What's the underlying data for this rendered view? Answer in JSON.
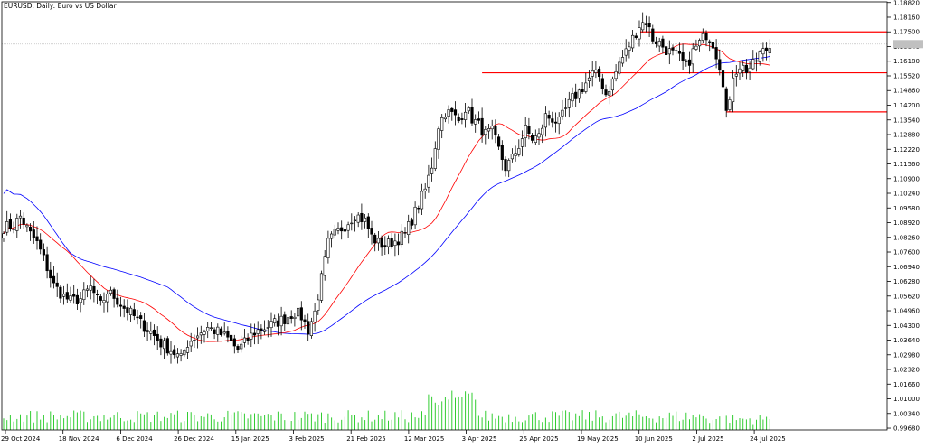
{
  "header": {
    "symbol_label": "EURUSD, Daily:  Euro vs US Dollar"
  },
  "colors": {
    "up_candle": "#ffffff",
    "down_candle": "#000000",
    "candle_outline": "#000000",
    "ma_fast": "#ff0000",
    "ma_slow": "#0000ff",
    "volume": "#32cd32",
    "level_lines": "#ff0000",
    "current_price_line": "#c0c0c0",
    "axis": "#000000",
    "text": "#000000"
  },
  "chart_data": {
    "type": "candlestick",
    "title": "EURUSD, Daily:  Euro vs US Dollar",
    "ylim": [
      0.996,
      1.1885
    ],
    "y_ticks": [
      "1.18820",
      "1.18160",
      "1.17500",
      "1.16840",
      "1.16180",
      "1.15520",
      "1.14860",
      "1.14200",
      "1.13540",
      "1.12880",
      "1.12220",
      "1.11560",
      "1.10900",
      "1.10240",
      "1.09580",
      "1.08920",
      "1.08260",
      "1.07600",
      "1.06940",
      "1.06280",
      "1.05620",
      "1.04960",
      "1.04300",
      "1.03640",
      "1.02980",
      "1.02320",
      "1.01660",
      "1.01000",
      "1.00340",
      "0.99680"
    ],
    "x_ticks": [
      "29 Oct 2024",
      "18 Nov 2024",
      "6 Dec 2024",
      "26 Dec 2024",
      "15 Jan 2025",
      "3 Feb 2025",
      "21 Feb 2025",
      "12 Mar 2025",
      "3 Apr 2025",
      "25 Apr 2025",
      "19 May 2025",
      "10 Jun 2025",
      "2 Jul 2025",
      "24 Jul 2025"
    ],
    "close_anchors": [
      [
        0,
        1.087
      ],
      [
        3,
        1.088
      ],
      [
        5,
        1.092
      ],
      [
        8,
        1.084
      ],
      [
        10,
        1.08
      ],
      [
        12,
        1.073
      ],
      [
        15,
        1.061
      ],
      [
        18,
        1.056
      ],
      [
        20,
        1.054
      ],
      [
        23,
        1.055
      ],
      [
        26,
        1.06
      ],
      [
        29,
        1.052
      ],
      [
        31,
        1.058
      ],
      [
        33,
        1.056
      ],
      [
        36,
        1.051
      ],
      [
        39,
        1.047
      ],
      [
        41,
        1.044
      ],
      [
        44,
        1.04
      ],
      [
        47,
        1.035
      ],
      [
        50,
        1.032
      ],
      [
        53,
        1.028
      ],
      [
        55,
        1.035
      ],
      [
        58,
        1.039
      ],
      [
        61,
        1.042
      ],
      [
        64,
        1.04
      ],
      [
        67,
        1.037
      ],
      [
        70,
        1.032
      ],
      [
        72,
        1.035
      ],
      [
        75,
        1.04
      ],
      [
        78,
        1.042
      ],
      [
        81,
        1.044
      ],
      [
        84,
        1.046
      ],
      [
        87,
        1.049
      ],
      [
        89,
        1.047
      ],
      [
        91,
        1.041
      ],
      [
        93,
        1.049
      ],
      [
        95,
        1.064
      ],
      [
        97,
        1.08
      ],
      [
        99,
        1.084
      ],
      [
        102,
        1.088
      ],
      [
        105,
        1.093
      ],
      [
        108,
        1.09
      ],
      [
        110,
        1.083
      ],
      [
        112,
        1.08
      ],
      [
        114,
        1.079
      ],
      [
        117,
        1.081
      ],
      [
        120,
        1.084
      ],
      [
        123,
        1.094
      ],
      [
        126,
        1.104
      ],
      [
        128,
        1.115
      ],
      [
        130,
        1.133
      ],
      [
        132,
        1.139
      ],
      [
        134,
        1.138
      ],
      [
        136,
        1.135
      ],
      [
        138,
        1.141
      ],
      [
        140,
        1.136
      ],
      [
        142,
        1.133
      ],
      [
        144,
        1.129
      ],
      [
        146,
        1.13
      ],
      [
        148,
        1.122
      ],
      [
        150,
        1.114
      ],
      [
        152,
        1.118
      ],
      [
        154,
        1.124
      ],
      [
        156,
        1.131
      ],
      [
        158,
        1.127
      ],
      [
        160,
        1.128
      ],
      [
        162,
        1.137
      ],
      [
        164,
        1.136
      ],
      [
        166,
        1.134
      ],
      [
        168,
        1.14
      ],
      [
        170,
        1.145
      ],
      [
        172,
        1.148
      ],
      [
        174,
        1.152
      ],
      [
        176,
        1.156
      ],
      [
        178,
        1.155
      ],
      [
        180,
        1.147
      ],
      [
        182,
        1.153
      ],
      [
        184,
        1.161
      ],
      [
        186,
        1.166
      ],
      [
        188,
        1.172
      ],
      [
        190,
        1.178
      ],
      [
        192,
        1.18
      ],
      [
        194,
        1.172
      ],
      [
        196,
        1.17
      ],
      [
        198,
        1.167
      ],
      [
        200,
        1.165
      ],
      [
        202,
        1.163
      ],
      [
        204,
        1.159
      ],
      [
        206,
        1.166
      ],
      [
        208,
        1.17
      ],
      [
        210,
        1.174
      ],
      [
        212,
        1.17
      ],
      [
        214,
        1.16
      ],
      [
        215,
        1.153
      ],
      [
        216,
        1.139
      ],
      [
        217,
        1.142
      ],
      [
        218,
        1.156
      ],
      [
        220,
        1.16
      ],
      [
        222,
        1.158
      ],
      [
        224,
        1.16
      ],
      [
        226,
        1.165
      ],
      [
        228,
        1.167
      ],
      [
        229,
        1.168
      ]
    ],
    "levels": [
      {
        "price": 1.175,
        "from_bar": 190,
        "to_bar": 236
      },
      {
        "price": 1.1566,
        "from_bar": 143,
        "to_bar": 236
      },
      {
        "price": 1.139,
        "from_bar": 216,
        "to_bar": 236
      }
    ],
    "current_price": 1.1695,
    "ma_fast_period": 20,
    "ma_slow_period": 50,
    "grid": false
  }
}
